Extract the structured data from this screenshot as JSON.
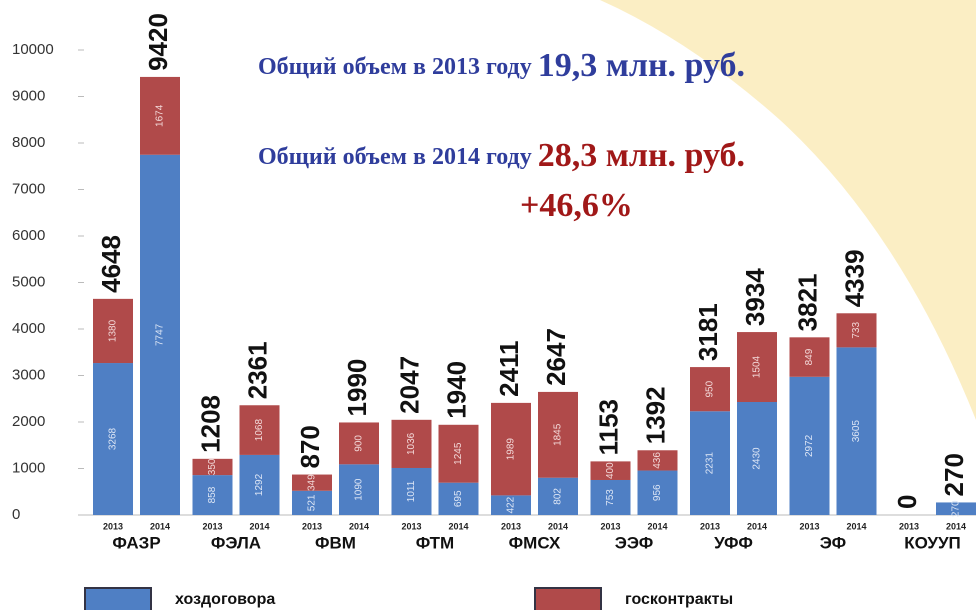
{
  "chart_data": {
    "type": "bar",
    "annotations": [
      {
        "text": "Общий объем в 2013 году",
        "value_text": "19,3 млн. руб."
      },
      {
        "text": "Общий объем в 2014 году",
        "value_text": "28,3 млн. руб."
      },
      {
        "text": "+46,6%"
      }
    ],
    "groups": [
      "ФАЗР",
      "ФЭЛА",
      "ФВМ",
      "ФТМ",
      "ФМСХ",
      "ЭЭФ",
      "УФФ",
      "ЭФ",
      "КОУУП"
    ],
    "categories": [
      "2013",
      "2014",
      "2013",
      "2014",
      "2013",
      "2014",
      "2013",
      "2014",
      "2013",
      "2014",
      "2013",
      "2014",
      "2013",
      "2014",
      "2013",
      "2014",
      "2013",
      "2014"
    ],
    "series": [
      {
        "name": "хоздоговора",
        "color": "#4f7fc4",
        "values": [
          3268,
          7747,
          858,
          1292,
          521,
          1090,
          1011,
          695,
          422,
          802,
          753,
          956,
          2231,
          2430,
          2972,
          3605,
          0,
          270
        ]
      },
      {
        "name": "госконтракты",
        "color": "#b04a4a",
        "values": [
          1380,
          1674,
          350,
          1068,
          349,
          900,
          1036,
          1245,
          1989,
          1845,
          400,
          436,
          950,
          1504,
          849,
          733,
          0,
          0
        ]
      }
    ],
    "totals": [
      4648,
      9420,
      1208,
      2361,
      870,
      1990,
      2047,
      1940,
      2411,
      2647,
      1153,
      1392,
      3181,
      3934,
      3821,
      4339,
      0,
      270
    ],
    "ylim": [
      0,
      10000
    ],
    "yticks": [
      0,
      1000,
      2000,
      3000,
      4000,
      5000,
      6000,
      7000,
      8000,
      9000,
      10000
    ],
    "stacked": true
  }
}
